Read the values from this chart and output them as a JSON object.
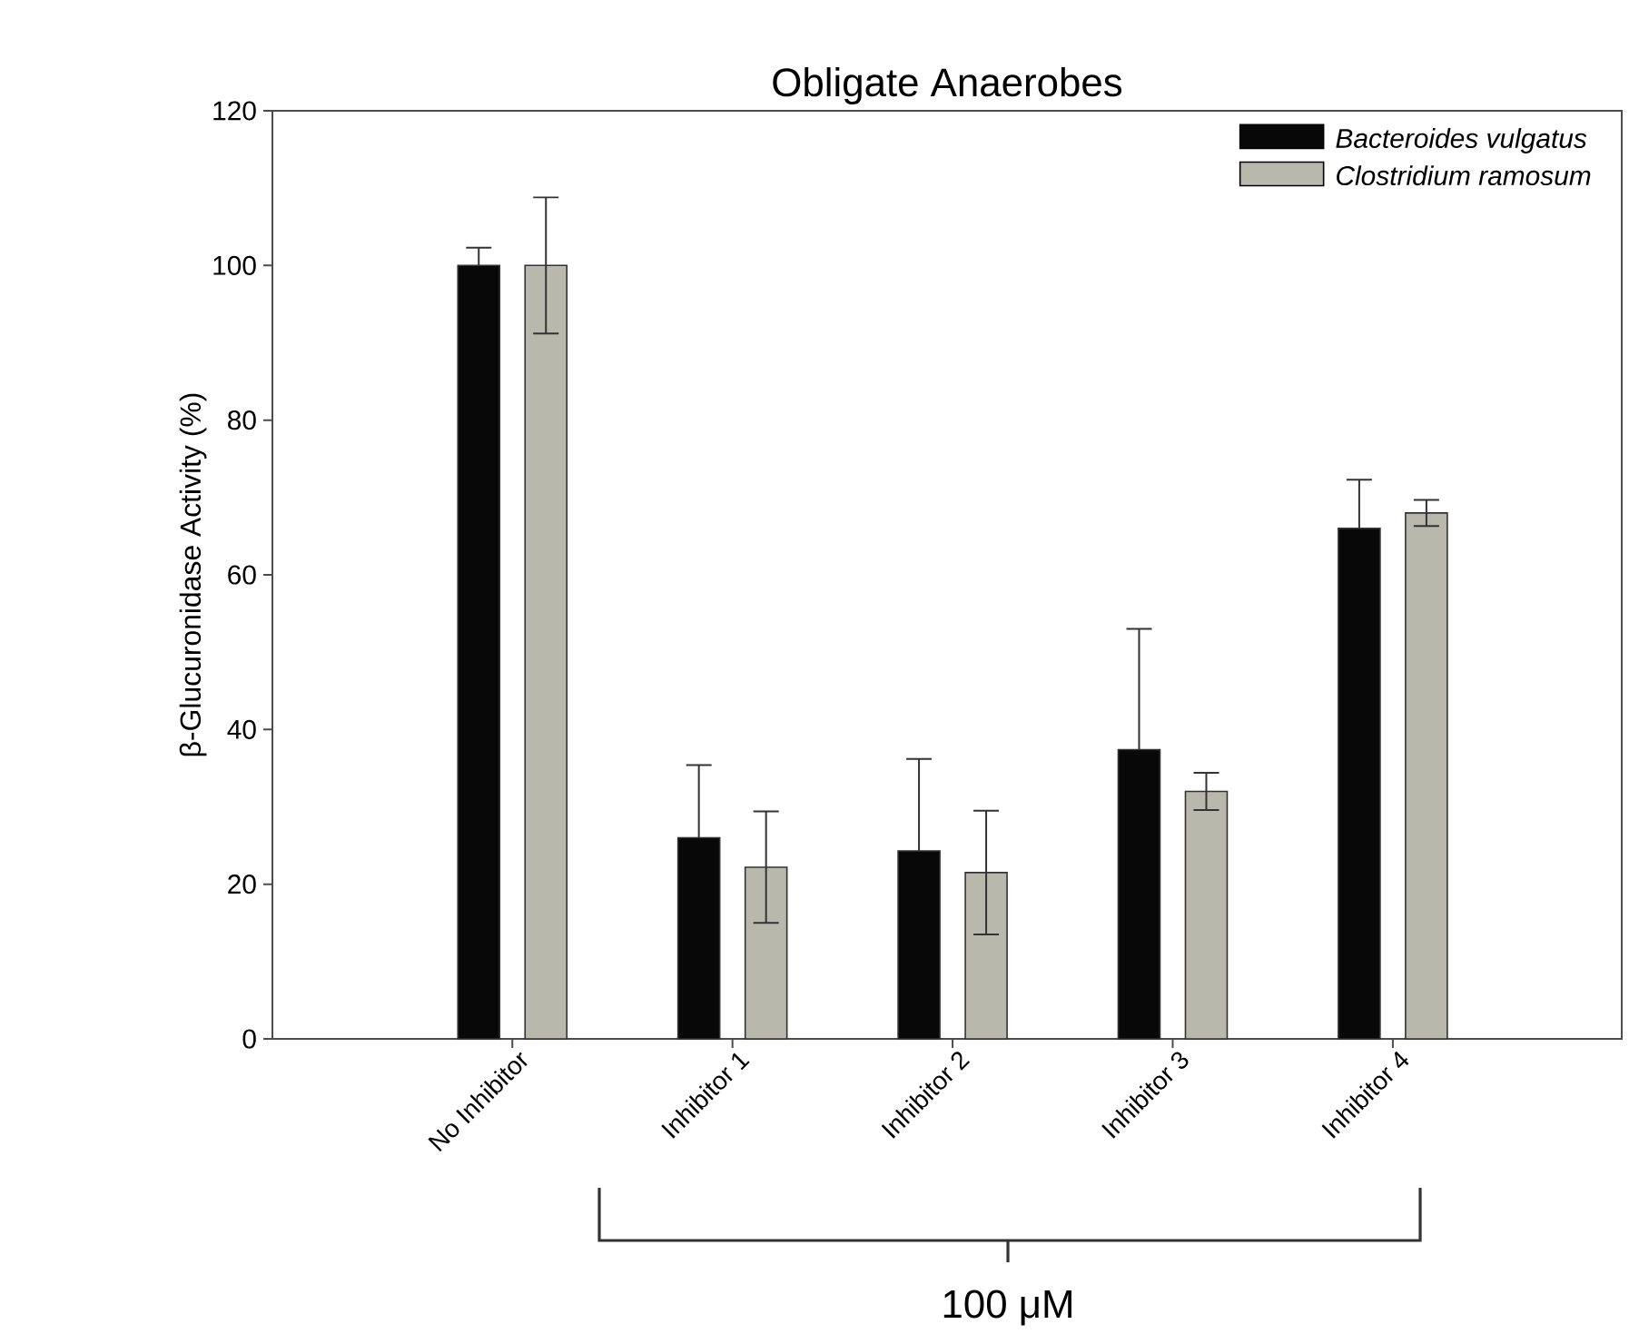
{
  "chart_data": {
    "type": "bar",
    "title": "Obligate Anaerobes",
    "ylabel": "β-Glucuronidase Activity (%)",
    "categories": [
      "No Inhibitor",
      "Inhibitor 1",
      "Inhibitor 2",
      "Inhibitor 3",
      "Inhibitor 4"
    ],
    "series": [
      {
        "name": "Bacteroides vulgatus",
        "color": "#080808",
        "values": [
          100,
          26,
          24.3,
          37.4,
          66
        ],
        "errors": [
          [
            100,
            102.3
          ],
          [
            26,
            35.4
          ],
          [
            24.3,
            36.2
          ],
          [
            37.4,
            53
          ],
          [
            66,
            72.3
          ]
        ]
      },
      {
        "name": "Clostridium ramosum",
        "color": "#b8b8ac",
        "values": [
          100,
          22.2,
          21.5,
          32,
          68
        ],
        "errors": [
          8.8,
          7.2,
          8,
          2.4,
          1.7
        ]
      }
    ],
    "ylim": [
      0,
      120
    ],
    "yticks": [
      0,
      20,
      40,
      60,
      80,
      100,
      120
    ],
    "legend": "top right",
    "grid": false,
    "annotations": [
      "100 μM"
    ]
  }
}
